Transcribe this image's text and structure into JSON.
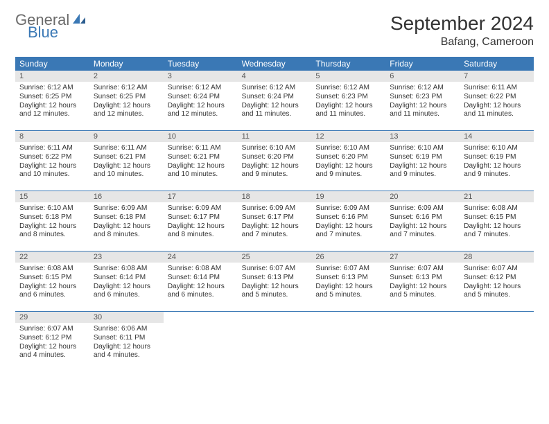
{
  "logo": {
    "general": "General",
    "blue": "Blue"
  },
  "header": {
    "title": "September 2024",
    "location": "Bafang, Cameroon"
  },
  "colors": {
    "header_bg": "#3a78b5",
    "header_text": "#ffffff",
    "date_bg": "#e6e6e6",
    "text": "#333333",
    "logo_gray": "#6b6b6b",
    "logo_blue": "#3a78b5"
  },
  "dayNames": [
    "Sunday",
    "Monday",
    "Tuesday",
    "Wednesday",
    "Thursday",
    "Friday",
    "Saturday"
  ],
  "weeks": [
    [
      {
        "date": "1",
        "sunrise": "Sunrise: 6:12 AM",
        "sunset": "Sunset: 6:25 PM",
        "daylight": "Daylight: 12 hours and 12 minutes."
      },
      {
        "date": "2",
        "sunrise": "Sunrise: 6:12 AM",
        "sunset": "Sunset: 6:25 PM",
        "daylight": "Daylight: 12 hours and 12 minutes."
      },
      {
        "date": "3",
        "sunrise": "Sunrise: 6:12 AM",
        "sunset": "Sunset: 6:24 PM",
        "daylight": "Daylight: 12 hours and 12 minutes."
      },
      {
        "date": "4",
        "sunrise": "Sunrise: 6:12 AM",
        "sunset": "Sunset: 6:24 PM",
        "daylight": "Daylight: 12 hours and 11 minutes."
      },
      {
        "date": "5",
        "sunrise": "Sunrise: 6:12 AM",
        "sunset": "Sunset: 6:23 PM",
        "daylight": "Daylight: 12 hours and 11 minutes."
      },
      {
        "date": "6",
        "sunrise": "Sunrise: 6:12 AM",
        "sunset": "Sunset: 6:23 PM",
        "daylight": "Daylight: 12 hours and 11 minutes."
      },
      {
        "date": "7",
        "sunrise": "Sunrise: 6:11 AM",
        "sunset": "Sunset: 6:22 PM",
        "daylight": "Daylight: 12 hours and 11 minutes."
      }
    ],
    [
      {
        "date": "8",
        "sunrise": "Sunrise: 6:11 AM",
        "sunset": "Sunset: 6:22 PM",
        "daylight": "Daylight: 12 hours and 10 minutes."
      },
      {
        "date": "9",
        "sunrise": "Sunrise: 6:11 AM",
        "sunset": "Sunset: 6:21 PM",
        "daylight": "Daylight: 12 hours and 10 minutes."
      },
      {
        "date": "10",
        "sunrise": "Sunrise: 6:11 AM",
        "sunset": "Sunset: 6:21 PM",
        "daylight": "Daylight: 12 hours and 10 minutes."
      },
      {
        "date": "11",
        "sunrise": "Sunrise: 6:10 AM",
        "sunset": "Sunset: 6:20 PM",
        "daylight": "Daylight: 12 hours and 9 minutes."
      },
      {
        "date": "12",
        "sunrise": "Sunrise: 6:10 AM",
        "sunset": "Sunset: 6:20 PM",
        "daylight": "Daylight: 12 hours and 9 minutes."
      },
      {
        "date": "13",
        "sunrise": "Sunrise: 6:10 AM",
        "sunset": "Sunset: 6:19 PM",
        "daylight": "Daylight: 12 hours and 9 minutes."
      },
      {
        "date": "14",
        "sunrise": "Sunrise: 6:10 AM",
        "sunset": "Sunset: 6:19 PM",
        "daylight": "Daylight: 12 hours and 9 minutes."
      }
    ],
    [
      {
        "date": "15",
        "sunrise": "Sunrise: 6:10 AM",
        "sunset": "Sunset: 6:18 PM",
        "daylight": "Daylight: 12 hours and 8 minutes."
      },
      {
        "date": "16",
        "sunrise": "Sunrise: 6:09 AM",
        "sunset": "Sunset: 6:18 PM",
        "daylight": "Daylight: 12 hours and 8 minutes."
      },
      {
        "date": "17",
        "sunrise": "Sunrise: 6:09 AM",
        "sunset": "Sunset: 6:17 PM",
        "daylight": "Daylight: 12 hours and 8 minutes."
      },
      {
        "date": "18",
        "sunrise": "Sunrise: 6:09 AM",
        "sunset": "Sunset: 6:17 PM",
        "daylight": "Daylight: 12 hours and 7 minutes."
      },
      {
        "date": "19",
        "sunrise": "Sunrise: 6:09 AM",
        "sunset": "Sunset: 6:16 PM",
        "daylight": "Daylight: 12 hours and 7 minutes."
      },
      {
        "date": "20",
        "sunrise": "Sunrise: 6:09 AM",
        "sunset": "Sunset: 6:16 PM",
        "daylight": "Daylight: 12 hours and 7 minutes."
      },
      {
        "date": "21",
        "sunrise": "Sunrise: 6:08 AM",
        "sunset": "Sunset: 6:15 PM",
        "daylight": "Daylight: 12 hours and 7 minutes."
      }
    ],
    [
      {
        "date": "22",
        "sunrise": "Sunrise: 6:08 AM",
        "sunset": "Sunset: 6:15 PM",
        "daylight": "Daylight: 12 hours and 6 minutes."
      },
      {
        "date": "23",
        "sunrise": "Sunrise: 6:08 AM",
        "sunset": "Sunset: 6:14 PM",
        "daylight": "Daylight: 12 hours and 6 minutes."
      },
      {
        "date": "24",
        "sunrise": "Sunrise: 6:08 AM",
        "sunset": "Sunset: 6:14 PM",
        "daylight": "Daylight: 12 hours and 6 minutes."
      },
      {
        "date": "25",
        "sunrise": "Sunrise: 6:07 AM",
        "sunset": "Sunset: 6:13 PM",
        "daylight": "Daylight: 12 hours and 5 minutes."
      },
      {
        "date": "26",
        "sunrise": "Sunrise: 6:07 AM",
        "sunset": "Sunset: 6:13 PM",
        "daylight": "Daylight: 12 hours and 5 minutes."
      },
      {
        "date": "27",
        "sunrise": "Sunrise: 6:07 AM",
        "sunset": "Sunset: 6:13 PM",
        "daylight": "Daylight: 12 hours and 5 minutes."
      },
      {
        "date": "28",
        "sunrise": "Sunrise: 6:07 AM",
        "sunset": "Sunset: 6:12 PM",
        "daylight": "Daylight: 12 hours and 5 minutes."
      }
    ],
    [
      {
        "date": "29",
        "sunrise": "Sunrise: 6:07 AM",
        "sunset": "Sunset: 6:12 PM",
        "daylight": "Daylight: 12 hours and 4 minutes."
      },
      {
        "date": "30",
        "sunrise": "Sunrise: 6:06 AM",
        "sunset": "Sunset: 6:11 PM",
        "daylight": "Daylight: 12 hours and 4 minutes."
      },
      {
        "empty": true
      },
      {
        "empty": true
      },
      {
        "empty": true
      },
      {
        "empty": true
      },
      {
        "empty": true
      }
    ]
  ]
}
